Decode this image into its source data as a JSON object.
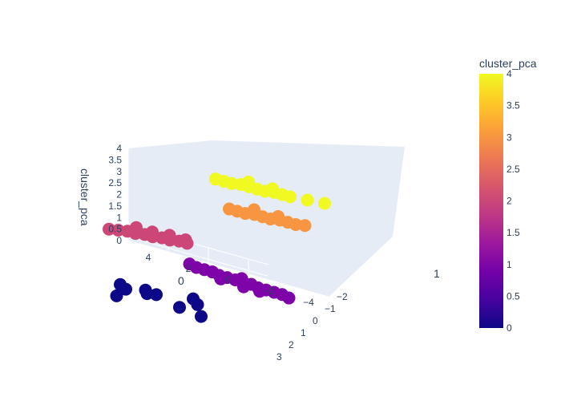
{
  "chart_data": {
    "type": "scatter",
    "mode": "3d",
    "colorbar": {
      "title": "cluster_pca",
      "ticks": [
        "0",
        "0.5",
        "1",
        "1.5",
        "2",
        "2.5",
        "3",
        "3.5",
        "4"
      ],
      "range": [
        0,
        4
      ],
      "colorscale": [
        "#0d0887",
        "#46039f",
        "#7201a8",
        "#9c179e",
        "#bd3786",
        "#d8576b",
        "#ed7953",
        "#fb9f3a",
        "#fdca26",
        "#f0f921"
      ]
    },
    "axes": {
      "x": {
        "title": "0",
        "ticks": [
          "4",
          "2",
          "0",
          "−2",
          "−4"
        ],
        "range": [
          -5,
          5
        ]
      },
      "y": {
        "title": "1",
        "ticks": [
          "−2",
          "−1",
          "0",
          "1",
          "2",
          "3"
        ],
        "range": [
          -2,
          3
        ]
      },
      "z": {
        "title": "cluster_pca",
        "ticks": [
          "0",
          "0.5",
          "1",
          "1.5",
          "2",
          "2.5",
          "3",
          "3.5",
          "4"
        ],
        "range": [
          0,
          4
        ]
      }
    },
    "series": [
      {
        "cluster": 0,
        "color": "#0d0887",
        "points": [
          [
            3.6,
            1.0,
            0
          ],
          [
            3.2,
            1.2,
            0
          ],
          [
            2.4,
            0.9,
            0
          ],
          [
            2.2,
            1.1,
            0
          ],
          [
            1.8,
            1.0,
            0
          ],
          [
            3.3,
            1.8,
            0
          ],
          [
            0.2,
            0.6,
            0
          ],
          [
            -0.2,
            0.9,
            0
          ],
          [
            0.4,
            1.4,
            0
          ],
          [
            -0.8,
            1.6,
            0
          ]
        ]
      },
      {
        "cluster": 1,
        "color": "#7e03a8",
        "points": [
          [
            0.4,
            0.0,
            1
          ],
          [
            0.0,
            0.0,
            1
          ],
          [
            -0.4,
            0.0,
            1
          ],
          [
            -0.8,
            0.1,
            1
          ],
          [
            -1.2,
            0.1,
            1
          ],
          [
            -1.6,
            0.1,
            1
          ],
          [
            -2.0,
            0.1,
            1
          ],
          [
            -2.4,
            0.1,
            1
          ],
          [
            -2.8,
            0.2,
            1
          ],
          [
            -3.2,
            0.2,
            1
          ],
          [
            -3.6,
            0.2,
            1
          ],
          [
            -4.0,
            0.2,
            1
          ],
          [
            -4.4,
            0.3,
            1
          ],
          [
            -1.0,
            0.3,
            1
          ],
          [
            -2.2,
            0.4,
            1
          ],
          [
            -3.0,
            0.4,
            1
          ],
          [
            0.8,
            -0.1,
            1
          ],
          [
            -1.8,
            -0.1,
            1
          ]
        ]
      },
      {
        "cluster": 2,
        "color": "#cc4778",
        "points": [
          [
            4.4,
            0.6,
            2
          ],
          [
            4.0,
            0.5,
            2
          ],
          [
            3.6,
            0.4,
            2
          ],
          [
            3.2,
            0.4,
            2
          ],
          [
            2.8,
            0.3,
            2
          ],
          [
            2.4,
            0.3,
            2
          ],
          [
            2.0,
            0.2,
            2
          ],
          [
            1.6,
            0.2,
            2
          ],
          [
            1.2,
            0.1,
            2
          ],
          [
            0.8,
            0.1,
            2
          ],
          [
            3.4,
            0.0,
            2
          ],
          [
            2.6,
            0.0,
            2
          ],
          [
            1.8,
            -0.1,
            2
          ],
          [
            1.0,
            -0.1,
            2
          ]
        ]
      },
      {
        "cluster": 3,
        "color": "#f89540",
        "points": [
          [
            -0.4,
            -1.4,
            3
          ],
          [
            -0.8,
            -1.4,
            3
          ],
          [
            -1.2,
            -1.4,
            3
          ],
          [
            -1.6,
            -1.5,
            3
          ],
          [
            -2.0,
            -1.5,
            3
          ],
          [
            -2.4,
            -1.5,
            3
          ],
          [
            -2.8,
            -1.6,
            3
          ],
          [
            -3.2,
            -1.6,
            3
          ],
          [
            -3.6,
            -1.6,
            3
          ],
          [
            -4.0,
            -1.7,
            3
          ],
          [
            -1.4,
            -1.8,
            3
          ],
          [
            -2.6,
            -1.8,
            3
          ]
        ]
      },
      {
        "cluster": 4,
        "color": "#f0f921",
        "points": [
          [
            0.4,
            -1.6,
            4
          ],
          [
            0.0,
            -1.6,
            4
          ],
          [
            -0.4,
            -1.6,
            4
          ],
          [
            -0.8,
            -1.7,
            4
          ],
          [
            -1.2,
            -1.7,
            4
          ],
          [
            -1.6,
            -1.7,
            4
          ],
          [
            -2.0,
            -1.7,
            4
          ],
          [
            -2.4,
            -1.8,
            4
          ],
          [
            -2.8,
            -1.8,
            4
          ],
          [
            -3.2,
            -1.8,
            4
          ],
          [
            -4.0,
            -1.9,
            4
          ],
          [
            -4.8,
            -2.0,
            4
          ],
          [
            -1.0,
            -2.0,
            4
          ],
          [
            -2.2,
            -2.0,
            4
          ]
        ]
      }
    ]
  }
}
